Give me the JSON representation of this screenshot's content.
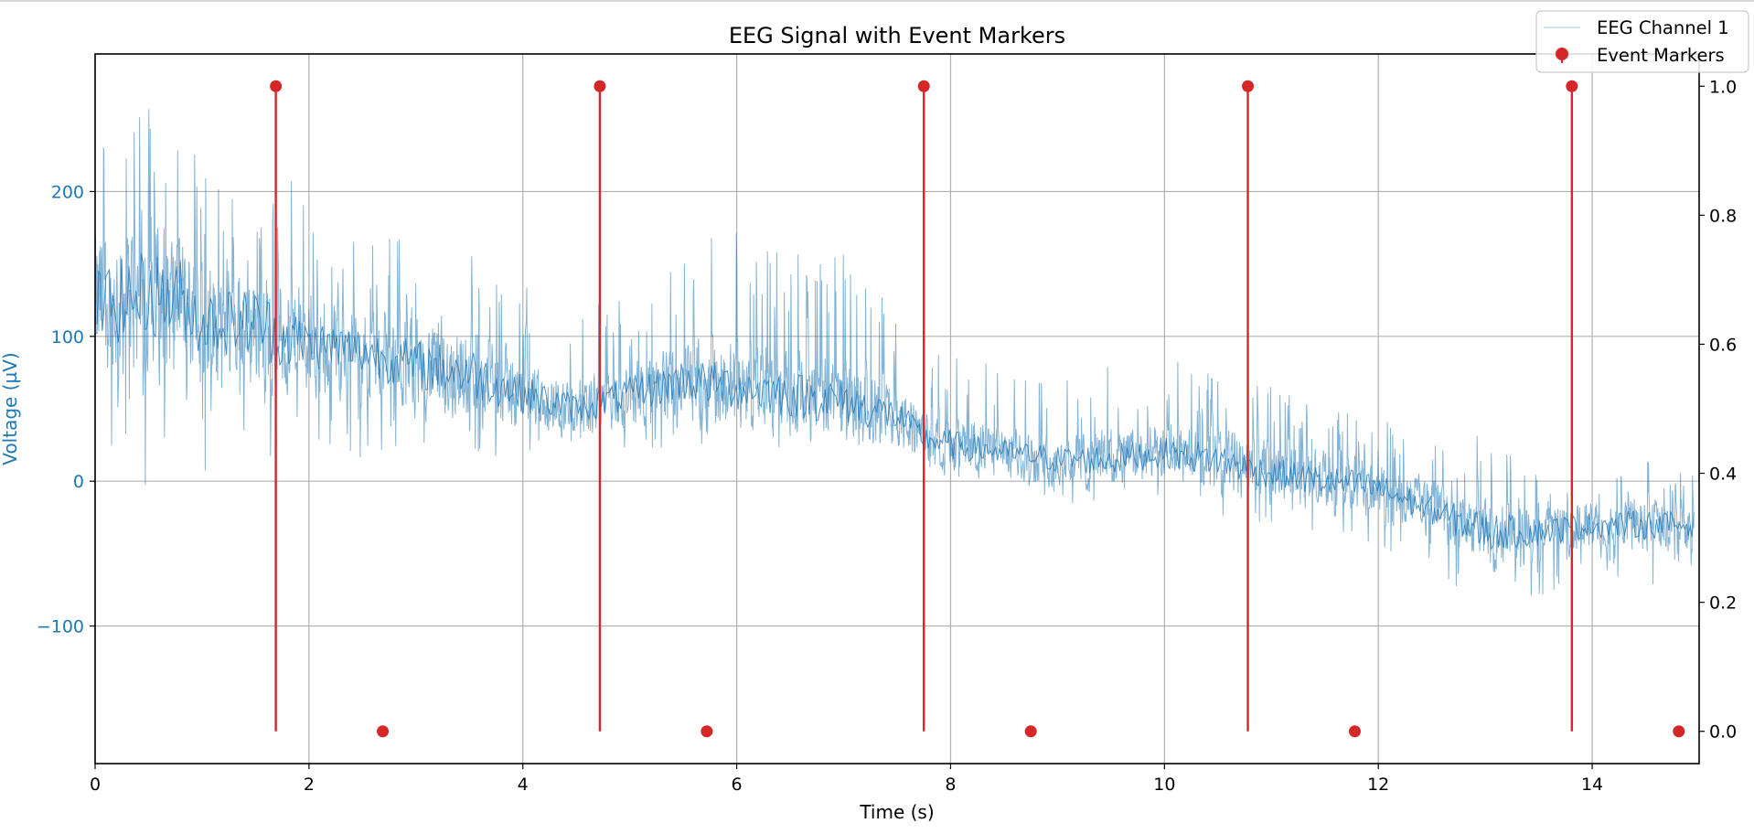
{
  "chart_data": {
    "type": "line",
    "title": "EEG Signal with Event Markers",
    "xlabel": "Time (s)",
    "ylabel": "Voltage (µV)",
    "y2label": "",
    "xlim": [
      0,
      15
    ],
    "ylim": [
      -195,
      295
    ],
    "y2lim": [
      -0.05,
      1.05
    ],
    "x_ticks": [
      0,
      2,
      4,
      6,
      8,
      10,
      12,
      14
    ],
    "y_ticks": [
      -100,
      0,
      100,
      200
    ],
    "y2_ticks": [
      0.0,
      0.2,
      0.4,
      0.6,
      0.8,
      1.0
    ],
    "grid": true,
    "legend_placement": "upper-right",
    "colors": {
      "eeg": "#1f77b4",
      "markers": "#d62728",
      "grid": "#b0b0b0"
    },
    "series": [
      {
        "name": "EEG Channel 1",
        "kind": "line",
        "axis": "left",
        "envelope": {
          "time": [
            0,
            0.5,
            0.8,
            1.0,
            1.5,
            1.75,
            2.0,
            2.5,
            3.0,
            3.5,
            4.0,
            4.5,
            5.0,
            5.5,
            6.0,
            6.5,
            7.0,
            7.5,
            7.75,
            8.0,
            8.5,
            9.0,
            9.5,
            10.0,
            10.5,
            11.0,
            11.5,
            12.0,
            12.5,
            13.0,
            13.5,
            14.0,
            14.5,
            14.95
          ],
          "center": [
            120,
            130,
            125,
            110,
            110,
            100,
            95,
            90,
            80,
            75,
            60,
            50,
            60,
            70,
            65,
            60,
            55,
            45,
            30,
            25,
            20,
            15,
            15,
            20,
            15,
            5,
            0,
            -5,
            -20,
            -35,
            -35,
            -30,
            -30,
            -30
          ],
          "upper": [
            250,
            270,
            255,
            210,
            210,
            235,
            180,
            170,
            170,
            175,
            140,
            120,
            130,
            160,
            175,
            170,
            160,
            120,
            90,
            95,
            75,
            70,
            80,
            85,
            85,
            65,
            60,
            45,
            25,
            35,
            10,
            10,
            15,
            5
          ],
          "lower": [
            -5,
            -5,
            -5,
            0,
            -5,
            30,
            20,
            15,
            10,
            5,
            20,
            25,
            20,
            25,
            25,
            20,
            15,
            15,
            10,
            0,
            -5,
            -15,
            -20,
            -10,
            -25,
            -30,
            -40,
            -50,
            -65,
            -90,
            -80,
            -70,
            -75,
            -75
          ]
        }
      },
      {
        "name": "Event Markers",
        "kind": "stem",
        "axis": "right",
        "x": [
          1.69,
          2.69,
          4.72,
          5.72,
          7.75,
          8.75,
          10.78,
          11.78,
          13.81,
          14.81
        ],
        "values": [
          1,
          0,
          1,
          0,
          1,
          0,
          1,
          0,
          1,
          0
        ]
      }
    ]
  }
}
